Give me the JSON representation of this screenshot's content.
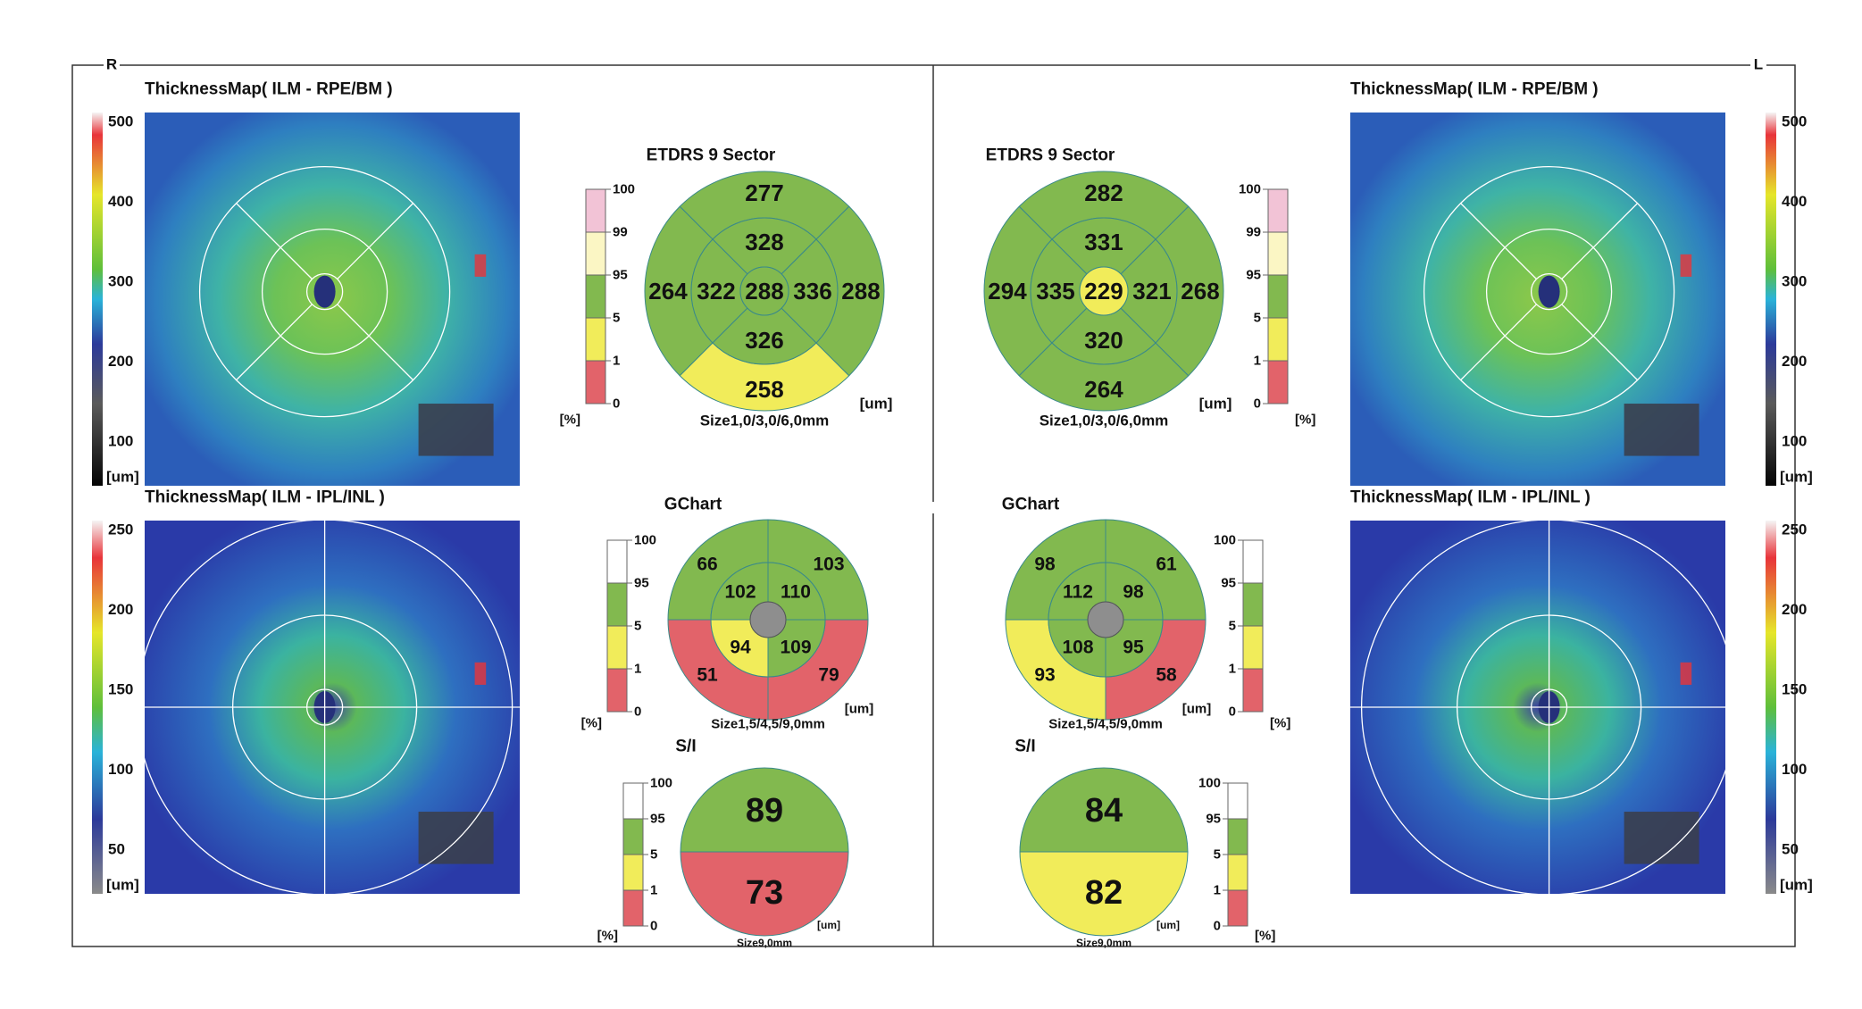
{
  "sides": {
    "right": "R",
    "left": "L"
  },
  "colors": {
    "green": "#82b94f",
    "yellow": "#f1ec5a",
    "red": "#e2636a",
    "pink": "#f2c3d6",
    "paleyellow": "#fbf6c4",
    "white": "#ffffff",
    "gray": "#8e8e8e"
  },
  "panels": [
    {
      "id": "right",
      "thickness_map_top": {
        "title": "ThicknessMap( ILM - RPE/BM )",
        "scale_ticks": [
          "500",
          "400",
          "300",
          "200",
          "100"
        ],
        "unit": "[um]"
      },
      "thickness_map_bottom": {
        "title": "ThicknessMap( ILM - IPL/INL )",
        "scale_ticks": [
          "250",
          "200",
          "150",
          "100",
          "50"
        ],
        "unit": "[um]"
      },
      "etdrs": {
        "title": "ETDRS 9 Sector",
        "size_label": "Size1,0/3,0/6,0mm",
        "unit": "[um]",
        "legend_ticks": [
          "100",
          "99",
          "95",
          "5",
          "1",
          "0"
        ],
        "legend_unit": "[%]",
        "center": {
          "value": "288",
          "color": "green"
        },
        "inner": {
          "superior": {
            "value": "328",
            "color": "green"
          },
          "nasal": {
            "value": "336",
            "color": "green"
          },
          "inferior": {
            "value": "326",
            "color": "green"
          },
          "temporal": {
            "value": "322",
            "color": "green"
          }
        },
        "outer": {
          "superior": {
            "value": "277",
            "color": "green"
          },
          "nasal": {
            "value": "288",
            "color": "green"
          },
          "inferior": {
            "value": "258",
            "color": "yellow"
          },
          "temporal": {
            "value": "264",
            "color": "green"
          }
        }
      },
      "gchart": {
        "title": "GChart",
        "size_label": "Size1,5/4,5/9,0mm",
        "unit": "[um]",
        "legend_ticks": [
          "100",
          "95",
          "5",
          "1",
          "0"
        ],
        "legend_unit": "[%]",
        "inner": {
          "sup_left": {
            "value": "102",
            "color": "green"
          },
          "sup_right": {
            "value": "110",
            "color": "green"
          },
          "inf_left": {
            "value": "94",
            "color": "yellow"
          },
          "inf_right": {
            "value": "109",
            "color": "green"
          }
        },
        "outer": {
          "sup_left": {
            "value": "66",
            "color": "green"
          },
          "sup_right": {
            "value": "103",
            "color": "green"
          },
          "inf_left": {
            "value": "51",
            "color": "red"
          },
          "inf_right": {
            "value": "79",
            "color": "red"
          }
        }
      },
      "si": {
        "title": "S/I",
        "size_label": "Size9,0mm",
        "unit": "[um]",
        "legend_ticks": [
          "100",
          "95",
          "5",
          "1",
          "0"
        ],
        "legend_unit": "[%]",
        "superior": {
          "value": "89",
          "color": "green"
        },
        "inferior": {
          "value": "73",
          "color": "red"
        }
      }
    },
    {
      "id": "left",
      "thickness_map_top": {
        "title": "ThicknessMap( ILM - RPE/BM )",
        "scale_ticks": [
          "500",
          "400",
          "300",
          "200",
          "100"
        ],
        "unit": "[um]"
      },
      "thickness_map_bottom": {
        "title": "ThicknessMap( ILM - IPL/INL )",
        "scale_ticks": [
          "250",
          "200",
          "150",
          "100",
          "50"
        ],
        "unit": "[um]"
      },
      "etdrs": {
        "title": "ETDRS 9 Sector",
        "size_label": "Size1,0/3,0/6,0mm",
        "unit": "[um]",
        "legend_ticks": [
          "100",
          "99",
          "95",
          "5",
          "1",
          "0"
        ],
        "legend_unit": "[%]",
        "center": {
          "value": "229",
          "color": "yellow"
        },
        "inner": {
          "superior": {
            "value": "331",
            "color": "green"
          },
          "nasal": {
            "value": "335",
            "color": "green"
          },
          "inferior": {
            "value": "320",
            "color": "green"
          },
          "temporal": {
            "value": "321",
            "color": "green"
          }
        },
        "outer": {
          "superior": {
            "value": "282",
            "color": "green"
          },
          "nasal": {
            "value": "294",
            "color": "green"
          },
          "inferior": {
            "value": "264",
            "color": "green"
          },
          "temporal": {
            "value": "268",
            "color": "green"
          }
        }
      },
      "gchart": {
        "title": "GChart",
        "size_label": "Size1,5/4,5/9,0mm",
        "unit": "[um]",
        "legend_ticks": [
          "100",
          "95",
          "5",
          "1",
          "0"
        ],
        "legend_unit": "[%]",
        "inner": {
          "sup_left": {
            "value": "112",
            "color": "green"
          },
          "sup_right": {
            "value": "98",
            "color": "green"
          },
          "inf_left": {
            "value": "108",
            "color": "green"
          },
          "inf_right": {
            "value": "95",
            "color": "green"
          }
        },
        "outer": {
          "sup_left": {
            "value": "98",
            "color": "green"
          },
          "sup_right": {
            "value": "61",
            "color": "green"
          },
          "inf_left": {
            "value": "93",
            "color": "yellow"
          },
          "inf_right": {
            "value": "58",
            "color": "red"
          }
        }
      },
      "si": {
        "title": "S/I",
        "size_label": "Size9,0mm",
        "unit": "[um]",
        "legend_ticks": [
          "100",
          "95",
          "5",
          "1",
          "0"
        ],
        "legend_unit": "[%]",
        "superior": {
          "value": "84",
          "color": "green"
        },
        "inferior": {
          "value": "82",
          "color": "yellow"
        }
      }
    }
  ]
}
